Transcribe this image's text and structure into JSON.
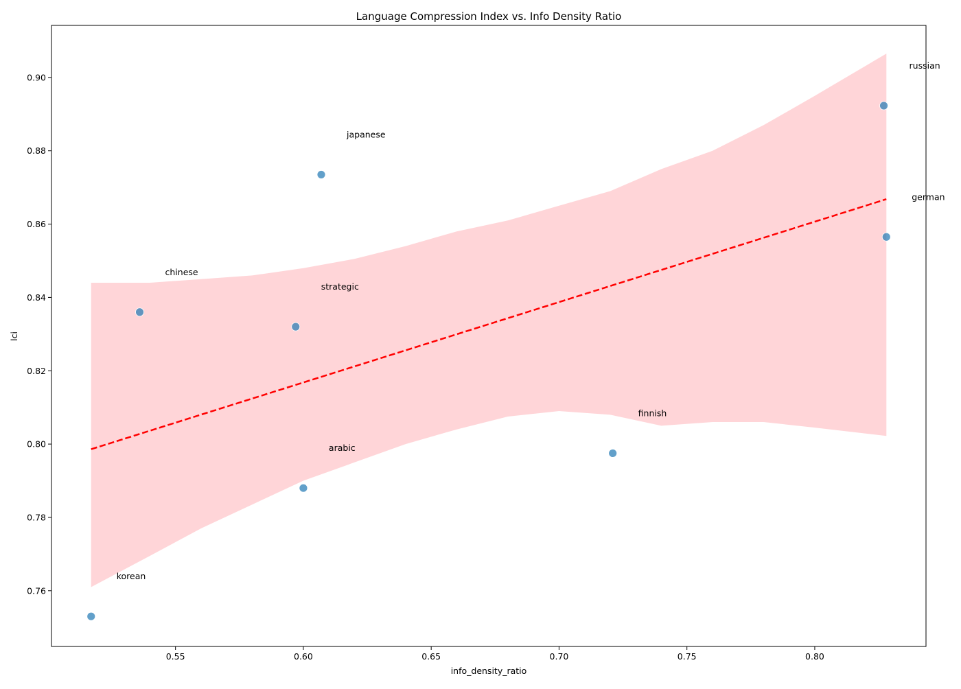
{
  "chart_data": {
    "type": "scatter",
    "title": "Language Compression Index vs. Info Density Ratio",
    "xlabel": "info_density_ratio",
    "ylabel": "lci",
    "xlim": [
      0.5015,
      0.8435
    ],
    "ylim": [
      0.7448,
      0.9142
    ],
    "xticks": [
      0.55,
      0.6,
      0.65,
      0.7,
      0.75,
      0.8
    ],
    "xtick_labels": [
      "0.55",
      "0.60",
      "0.65",
      "0.70",
      "0.75",
      "0.80"
    ],
    "yticks": [
      0.76,
      0.78,
      0.8,
      0.82,
      0.84,
      0.86,
      0.88,
      0.9
    ],
    "ytick_labels": [
      "0.76",
      "0.78",
      "0.80",
      "0.82",
      "0.84",
      "0.86",
      "0.88",
      "0.90"
    ],
    "grid": false,
    "points": [
      {
        "label": "korean",
        "x": 0.517,
        "y": 0.753
      },
      {
        "label": "chinese",
        "x": 0.536,
        "y": 0.836
      },
      {
        "label": "strategic",
        "x": 0.597,
        "y": 0.832
      },
      {
        "label": "arabic",
        "x": 0.6,
        "y": 0.788
      },
      {
        "label": "japanese",
        "x": 0.607,
        "y": 0.8735
      },
      {
        "label": "finnish",
        "x": 0.721,
        "y": 0.7975
      },
      {
        "label": "russian",
        "x": 0.827,
        "y": 0.8923
      },
      {
        "label": "german",
        "x": 0.828,
        "y": 0.8565
      }
    ],
    "regression_line": {
      "x": [
        0.517,
        0.828
      ],
      "y": [
        0.7986,
        0.8668
      ],
      "style": "dashed"
    },
    "confidence_band": {
      "x": [
        0.517,
        0.54,
        0.56,
        0.58,
        0.6,
        0.62,
        0.64,
        0.66,
        0.68,
        0.7,
        0.72,
        0.74,
        0.76,
        0.78,
        0.8,
        0.828
      ],
      "lower": [
        0.761,
        0.7695,
        0.777,
        0.7835,
        0.79,
        0.795,
        0.8,
        0.804,
        0.8075,
        0.809,
        0.808,
        0.805,
        0.806,
        0.806,
        0.8045,
        0.8022
      ],
      "upper": [
        0.844,
        0.844,
        0.845,
        0.846,
        0.848,
        0.8505,
        0.854,
        0.858,
        0.861,
        0.865,
        0.869,
        0.875,
        0.88,
        0.887,
        0.895,
        0.9065
      ]
    },
    "colors": {
      "points": "#1f77b4",
      "line": "#ff0000",
      "band": "#ffb3b8"
    }
  }
}
